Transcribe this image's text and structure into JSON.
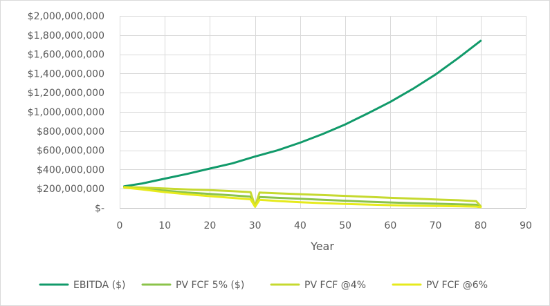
{
  "chart_data": {
    "type": "line",
    "title": "",
    "xlabel": "Year",
    "ylabel": "",
    "xlim": [
      0,
      90
    ],
    "ylim": [
      0,
      2000000000
    ],
    "x_ticks": [
      0,
      10,
      20,
      30,
      40,
      50,
      60,
      70,
      80,
      90
    ],
    "x_tick_labels": [
      "0",
      "10",
      "20",
      "30",
      "40",
      "50",
      "60",
      "70",
      "80",
      "90"
    ],
    "y_ticks": [
      0,
      200000000,
      400000000,
      600000000,
      800000000,
      1000000000,
      1200000000,
      1400000000,
      1600000000,
      1800000000,
      2000000000
    ],
    "y_tick_labels": [
      "$-",
      "$200,000,000",
      "$400,000,000",
      "$600,000,000",
      "$800,000,000",
      "$1,000,000,000",
      "$1,200,000,000",
      "$1,400,000,000",
      "$1,600,000,000",
      "$1,800,000,000",
      "$2,000,000,000"
    ],
    "grid": "vertical and horizontal",
    "legend_position": "bottom",
    "series": [
      {
        "name": "EBITDA ($)",
        "color": "#119a6a",
        "x": [
          1,
          5,
          10,
          15,
          20,
          25,
          30,
          35,
          40,
          45,
          50,
          55,
          60,
          65,
          70,
          75,
          80
        ],
        "values": [
          225000000,
          255000000,
          305000000,
          355000000,
          410000000,
          465000000,
          535000000,
          600000000,
          680000000,
          770000000,
          870000000,
          985000000,
          1105000000,
          1240000000,
          1390000000,
          1560000000,
          1740000000
        ]
      },
      {
        "name": "PV FCF 5% ($)",
        "color": "#8bc34a",
        "x": [
          1,
          5,
          10,
          15,
          20,
          25,
          29,
          30,
          31,
          35,
          40,
          45,
          50,
          55,
          60,
          65,
          70,
          75,
          79,
          80
        ],
        "values": [
          215000000,
          200000000,
          180000000,
          160000000,
          145000000,
          130000000,
          118000000,
          15000000,
          113000000,
          105000000,
          95000000,
          85000000,
          75000000,
          65000000,
          57000000,
          50000000,
          44000000,
          38000000,
          33000000,
          15000000
        ]
      },
      {
        "name": "PV FCF @4%",
        "color": "#c6d92f",
        "x": [
          1,
          5,
          10,
          15,
          20,
          25,
          29,
          30,
          31,
          35,
          40,
          45,
          50,
          55,
          60,
          65,
          70,
          75,
          79,
          80
        ],
        "values": [
          218000000,
          212000000,
          202000000,
          193000000,
          185000000,
          175000000,
          165000000,
          20000000,
          160000000,
          152000000,
          143000000,
          134000000,
          125000000,
          115000000,
          105000000,
          97000000,
          88000000,
          80000000,
          70000000,
          18000000
        ]
      },
      {
        "name": "PV FCF @6%",
        "color": "#e6ea1c",
        "x": [
          1,
          5,
          10,
          15,
          20,
          25,
          29,
          30,
          31,
          35,
          40,
          45,
          50,
          55,
          60,
          65,
          70,
          75,
          79,
          80
        ],
        "values": [
          212000000,
          192000000,
          165000000,
          142000000,
          122000000,
          104000000,
          90000000,
          12000000,
          84000000,
          72000000,
          60000000,
          50000000,
          42000000,
          35000000,
          29000000,
          24000000,
          20000000,
          17000000,
          14000000,
          8000000
        ]
      }
    ]
  }
}
